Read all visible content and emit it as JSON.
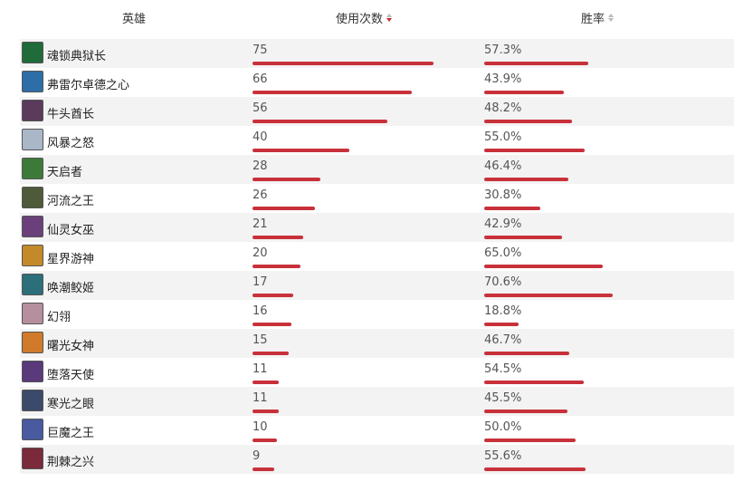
{
  "header": {
    "hero_label": "英雄",
    "usage_label": "使用次数",
    "winrate_label": "胜率"
  },
  "colors": {
    "bar": "#c8313a",
    "sort_active": "#d0252d",
    "row_alt": "#f3f3f3"
  },
  "chart_data": {
    "type": "table",
    "columns": [
      "英雄",
      "使用次数",
      "胜率"
    ],
    "rows": [
      {
        "hero": "魂锁典狱长",
        "usage": 75,
        "winrate_text": "57.3%",
        "winrate": 57.3,
        "avatar_color": "#1f6b3a"
      },
      {
        "hero": "弗雷尔卓德之心",
        "usage": 66,
        "winrate_text": "43.9%",
        "winrate": 43.9,
        "avatar_color": "#2e6ea8"
      },
      {
        "hero": "牛头酋长",
        "usage": 56,
        "winrate_text": "48.2%",
        "winrate": 48.2,
        "avatar_color": "#5a3b5c"
      },
      {
        "hero": "风暴之怒",
        "usage": 40,
        "winrate_text": "55.0%",
        "winrate": 55.0,
        "avatar_color": "#a9b7c9"
      },
      {
        "hero": "天启者",
        "usage": 28,
        "winrate_text": "46.4%",
        "winrate": 46.4,
        "avatar_color": "#3d7a3a"
      },
      {
        "hero": "河流之王",
        "usage": 26,
        "winrate_text": "30.8%",
        "winrate": 30.8,
        "avatar_color": "#4e5a3a"
      },
      {
        "hero": "仙灵女巫",
        "usage": 21,
        "winrate_text": "42.9%",
        "winrate": 42.9,
        "avatar_color": "#6a3f7a"
      },
      {
        "hero": "星界游神",
        "usage": 20,
        "winrate_text": "65.0%",
        "winrate": 65.0,
        "avatar_color": "#c48a2a"
      },
      {
        "hero": "唤潮鲛姬",
        "usage": 17,
        "winrate_text": "70.6%",
        "winrate": 70.6,
        "avatar_color": "#2b6f7a"
      },
      {
        "hero": "幻翎",
        "usage": 16,
        "winrate_text": "18.8%",
        "winrate": 18.8,
        "avatar_color": "#b58f9e"
      },
      {
        "hero": "曙光女神",
        "usage": 15,
        "winrate_text": "46.7%",
        "winrate": 46.7,
        "avatar_color": "#d07a2a"
      },
      {
        "hero": "堕落天使",
        "usage": 11,
        "winrate_text": "54.5%",
        "winrate": 54.5,
        "avatar_color": "#5a3a7a"
      },
      {
        "hero": "寒光之眼",
        "usage": 11,
        "winrate_text": "45.5%",
        "winrate": 45.5,
        "avatar_color": "#3a4a6a"
      },
      {
        "hero": "巨魔之王",
        "usage": 10,
        "winrate_text": "50.0%",
        "winrate": 50.0,
        "avatar_color": "#4a5aa0"
      },
      {
        "hero": "荆棘之兴",
        "usage": 9,
        "winrate_text": "55.6%",
        "winrate": 55.6,
        "avatar_color": "#7a2a3a"
      }
    ]
  }
}
